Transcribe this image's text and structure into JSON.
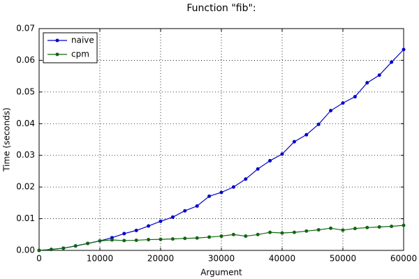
{
  "chart_data": {
    "type": "line",
    "title": "Function \"fib\":",
    "x_label": "Argument",
    "y_label": "Time (seconds)",
    "x": [
      0,
      2000,
      4000,
      6000,
      8000,
      10000,
      12000,
      14000,
      16000,
      18000,
      20000,
      22000,
      24000,
      26000,
      28000,
      30000,
      32000,
      34000,
      36000,
      38000,
      40000,
      42000,
      44000,
      46000,
      48000,
      50000,
      52000,
      54000,
      56000,
      58000,
      60000
    ],
    "series": [
      {
        "name": "naive",
        "color": "#0000cc",
        "values": [
          0.0,
          0.0003,
          0.0007,
          0.0014,
          0.0022,
          0.003,
          0.004,
          0.0053,
          0.0063,
          0.0077,
          0.0092,
          0.0105,
          0.0125,
          0.014,
          0.0171,
          0.0183,
          0.02,
          0.0225,
          0.0257,
          0.0283,
          0.0304,
          0.0343,
          0.0365,
          0.0398,
          0.0441,
          0.0465,
          0.0485,
          0.0529,
          0.0553,
          0.0594,
          0.0634
        ]
      },
      {
        "name": "cpm",
        "color": "#116611",
        "values": [
          0.0,
          0.0003,
          0.0007,
          0.0014,
          0.0022,
          0.003,
          0.0033,
          0.0031,
          0.0032,
          0.0034,
          0.0035,
          0.0036,
          0.0038,
          0.0039,
          0.0042,
          0.0045,
          0.005,
          0.0045,
          0.005,
          0.0057,
          0.0055,
          0.0057,
          0.0061,
          0.0065,
          0.007,
          0.0064,
          0.0069,
          0.0072,
          0.0074,
          0.0076,
          0.0079
        ]
      }
    ],
    "xlim": [
      0,
      60000
    ],
    "xticks": [
      0,
      10000,
      20000,
      30000,
      40000,
      50000,
      60000
    ],
    "ylim": [
      0,
      0.07
    ],
    "yticks": [
      {
        "value": 0,
        "label": "0.00"
      },
      0.01,
      0.02,
      0.03,
      0.04,
      0.05,
      0.06,
      0.07
    ],
    "grid": true,
    "legend": "upper left"
  }
}
